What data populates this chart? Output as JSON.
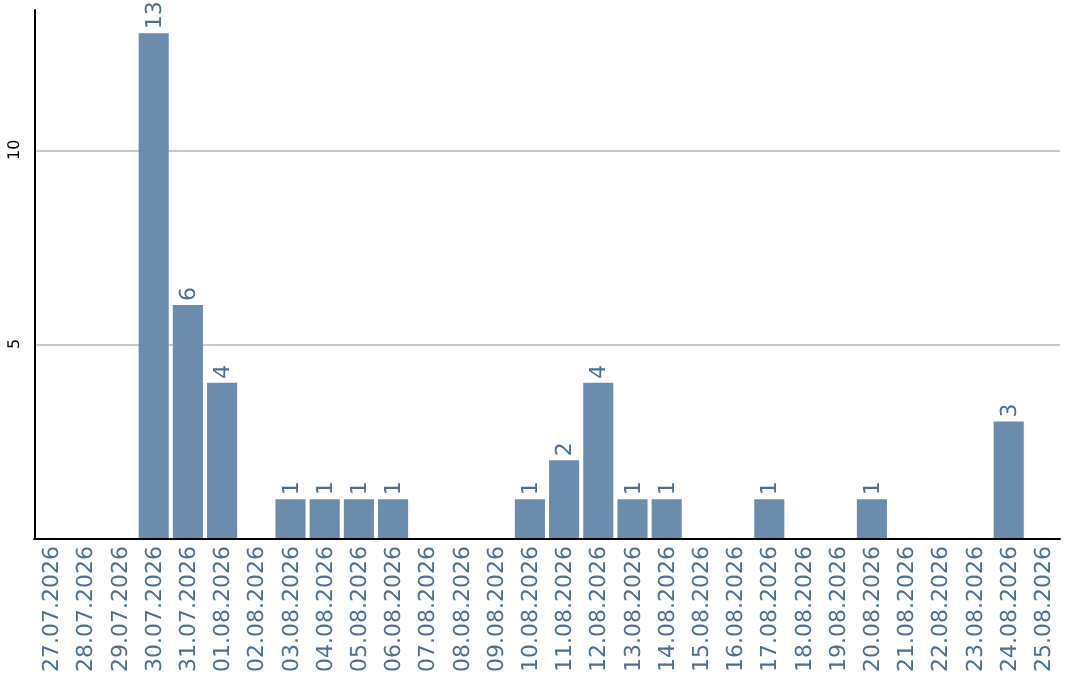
{
  "chart_data": {
    "type": "bar",
    "categories": [
      "27.07.2026",
      "28.07.2026",
      "29.07.2026",
      "30.07.2026",
      "31.07.2026",
      "01.08.2026",
      "02.08.2026",
      "03.08.2026",
      "04.08.2026",
      "05.08.2026",
      "06.08.2026",
      "07.08.2026",
      "08.08.2026",
      "09.08.2026",
      "10.08.2026",
      "11.08.2026",
      "12.08.2026",
      "13.08.2026",
      "14.08.2026",
      "15.08.2026",
      "16.08.2026",
      "17.08.2026",
      "18.08.2026",
      "19.08.2026",
      "20.08.2026",
      "21.08.2026",
      "22.08.2026",
      "23.08.2026",
      "24.08.2026",
      "25.08.2026"
    ],
    "values": [
      0,
      0,
      0,
      13,
      6,
      4,
      0,
      1,
      1,
      1,
      1,
      0,
      0,
      0,
      1,
      2,
      4,
      1,
      1,
      0,
      0,
      1,
      0,
      0,
      1,
      0,
      0,
      0,
      3,
      0
    ],
    "value_labels": [
      null,
      null,
      null,
      "13",
      "6",
      "4",
      null,
      "1",
      "1",
      "1",
      "1",
      null,
      null,
      null,
      "1",
      "2",
      "4",
      "1",
      "1",
      null,
      null,
      "1",
      null,
      null,
      "1",
      null,
      null,
      null,
      "3",
      null
    ],
    "color": "#6b8cad",
    "ylim": [
      0,
      13.6
    ],
    "yticks": [
      5,
      10
    ],
    "grid": "y"
  }
}
